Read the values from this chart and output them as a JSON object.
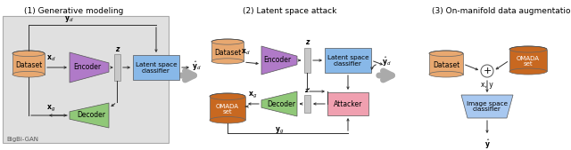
{
  "panel1_title": "(1) Generative modeling",
  "panel2_title": "(2) Latent space attack",
  "panel3_title": "(3) On-manifold data augmentation",
  "bg_color": "#ffffff",
  "panel1_bg": "#e0e0e0",
  "dataset_color": "#e8a870",
  "encoder_color": "#b07ac8",
  "decoder_color": "#90c878",
  "latent_classifier_color": "#88b8e8",
  "attacker_color": "#f0a0b0",
  "omada_color": "#c86820",
  "image_classifier_color": "#a8c8f0",
  "z_color": "#c8c8c8",
  "arrow_color": "#404040",
  "big_arrow_color": "#909090"
}
